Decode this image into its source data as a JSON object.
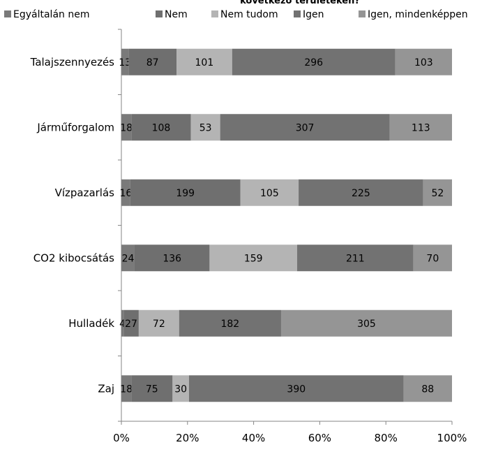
{
  "chart_data": {
    "type": "bar",
    "orientation": "horizontal",
    "stacked": "percent",
    "title": "következő területeken?",
    "categories": [
      "Talajszennyezés",
      "Járműforgalom",
      "Vízpazarlás",
      "CO2 kibocsátás",
      "Hulladék",
      "Zaj"
    ],
    "series": [
      {
        "name": "Egyáltalán nem",
        "color": "#7a7a7a",
        "values": [
          13,
          18,
          16,
          24,
          4,
          18
        ]
      },
      {
        "name": "Nem",
        "color": "#6f6f6f",
        "values": [
          87,
          108,
          199,
          136,
          27,
          75
        ]
      },
      {
        "name": "Nem tudom",
        "color": "#b4b4b4",
        "values": [
          101,
          53,
          105,
          159,
          72,
          30
        ]
      },
      {
        "name": "Igen",
        "color": "#727272",
        "values": [
          296,
          307,
          225,
          211,
          182,
          390
        ]
      },
      {
        "name": "Igen, mindenképpen",
        "color": "#959595",
        "values": [
          103,
          113,
          52,
          70,
          305,
          88
        ]
      }
    ],
    "x_ticks": [
      "0%",
      "20%",
      "40%",
      "60%",
      "80%",
      "100%"
    ],
    "xlim": [
      0,
      100
    ],
    "legend_position": "top",
    "grid": false
  }
}
